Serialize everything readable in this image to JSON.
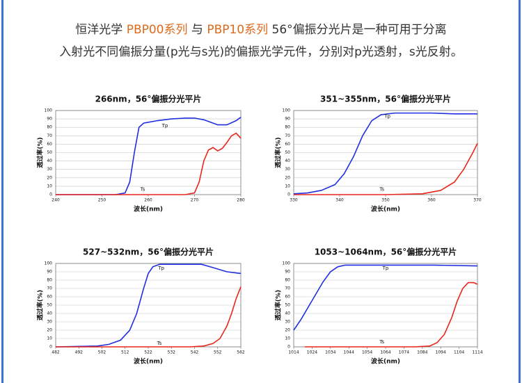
{
  "intro": {
    "line1": [
      "恒洋光学 ",
      "PBP00系列",
      " 与 ",
      "PBP10系列",
      " 56°偏振分光片是一种可用于分离"
    ],
    "line2": "入射光不同偏振分量(p光与s光)的偏振光学元件，分别对p光透射，s光反射。"
  },
  "chart_data": [
    {
      "type": "line",
      "title": "266nm，56°偏振分光平片",
      "x_label": "波长(nm)",
      "y_label": "透过率(%)",
      "xlim": [
        240,
        280
      ],
      "xticks": [
        240,
        250,
        260,
        270,
        280
      ],
      "ylim": [
        0,
        100
      ],
      "yticks": [
        0,
        10,
        20,
        30,
        40,
        50,
        60,
        70,
        80,
        90,
        100
      ],
      "grid": true,
      "series": [
        {
          "name": "Tp",
          "color": "#1f2ee0",
          "x": [
            240,
            250,
            253,
            255,
            256,
            257,
            258,
            259,
            260,
            262,
            265,
            268,
            270,
            272,
            274,
            275,
            277,
            279,
            280
          ],
          "values": [
            0,
            0,
            0,
            2,
            15,
            50,
            80,
            85,
            86,
            88,
            90,
            91,
            91,
            89,
            85,
            83,
            83,
            88,
            92
          ]
        },
        {
          "name": "Ts",
          "color": "#e8261c",
          "x": [
            240,
            268,
            270,
            271,
            272,
            273,
            274,
            275,
            276,
            277,
            278,
            279,
            280
          ],
          "values": [
            0,
            0,
            2,
            15,
            40,
            53,
            56,
            52,
            55,
            62,
            70,
            73,
            67
          ]
        }
      ]
    },
    {
      "type": "line",
      "title": "351~355nm，56°偏振分光平片",
      "x_label": "波长(nm)",
      "y_label": "透过率(%)",
      "xlim": [
        330,
        370
      ],
      "xticks": [
        330,
        340,
        350,
        360,
        370
      ],
      "ylim": [
        0,
        100
      ],
      "yticks": [
        0,
        10,
        20,
        30,
        40,
        50,
        60,
        70,
        80,
        90,
        100
      ],
      "grid": true,
      "series": [
        {
          "name": "Tp",
          "color": "#1f2ee0",
          "x": [
            330,
            333,
            336,
            339,
            341,
            343,
            345,
            347,
            349,
            352,
            355,
            360,
            365,
            370
          ],
          "values": [
            1,
            2,
            5,
            12,
            25,
            45,
            70,
            88,
            95,
            97,
            97,
            97,
            96,
            96
          ]
        },
        {
          "name": "Ts",
          "color": "#e8261c",
          "x": [
            330,
            350,
            358,
            362,
            365,
            367,
            369,
            370
          ],
          "values": [
            0,
            0,
            1,
            5,
            15,
            30,
            50,
            61
          ]
        }
      ]
    },
    {
      "type": "line",
      "title": "527~532nm，56°偏振分光平片",
      "x_label": "波长(nm)",
      "y_label": "透过率(%)",
      "xlim": [
        482,
        562
      ],
      "xticks": [
        482,
        492,
        502,
        512,
        522,
        532,
        542,
        552,
        562
      ],
      "ylim": [
        0,
        100
      ],
      "yticks": [
        0,
        10,
        20,
        30,
        40,
        50,
        60,
        70,
        80,
        90,
        100
      ],
      "grid": true,
      "series": [
        {
          "name": "Tp",
          "color": "#1f2ee0",
          "x": [
            482,
            500,
            505,
            510,
            514,
            517,
            520,
            522,
            524,
            527,
            535,
            545,
            550,
            556,
            562
          ],
          "values": [
            0,
            1,
            3,
            8,
            20,
            40,
            70,
            88,
            96,
            99,
            99,
            99,
            95,
            90,
            88
          ]
        },
        {
          "name": "Ts",
          "color": "#e8261c",
          "x": [
            482,
            530,
            540,
            546,
            550,
            553,
            556,
            558,
            560,
            562
          ],
          "values": [
            0,
            0,
            0,
            1,
            4,
            10,
            25,
            40,
            58,
            72
          ]
        }
      ]
    },
    {
      "type": "line",
      "title": "1053~1064nm，56°偏振分光平片",
      "x_label": "波长(nm)",
      "y_label": "透过率(%)",
      "xlim": [
        1014,
        1114
      ],
      "xticks": [
        1014,
        1024,
        1034,
        1044,
        1054,
        1064,
        1074,
        1084,
        1094,
        1104,
        1114
      ],
      "ylim": [
        0,
        100
      ],
      "yticks": [
        0,
        10,
        20,
        30,
        40,
        50,
        60,
        70,
        80,
        90,
        100
      ],
      "grid": true,
      "series": [
        {
          "name": "Tp",
          "color": "#1f2ee0",
          "x": [
            1014,
            1018,
            1022,
            1026,
            1030,
            1034,
            1038,
            1042,
            1050,
            1070,
            1090,
            1114
          ],
          "values": [
            20,
            33,
            48,
            63,
            78,
            90,
            96,
            98,
            98,
            98,
            98,
            97
          ]
        },
        {
          "name": "Ts",
          "color": "#e8261c",
          "x": [
            1020,
            1080,
            1088,
            1092,
            1096,
            1100,
            1103,
            1106,
            1109,
            1112,
            1114
          ],
          "values": [
            0,
            0,
            1,
            5,
            15,
            35,
            55,
            70,
            77,
            77,
            75
          ]
        }
      ]
    }
  ]
}
